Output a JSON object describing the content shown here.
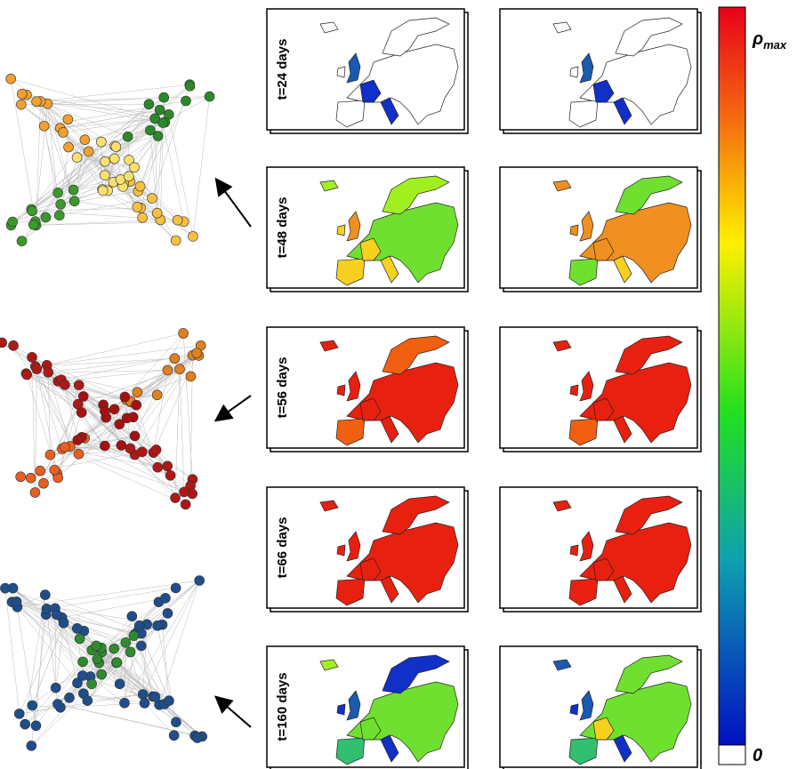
{
  "panels": [
    {
      "label": "t=24 days"
    },
    {
      "label": "t=48 days"
    },
    {
      "label": "t=56 days"
    },
    {
      "label": "t=66 days"
    },
    {
      "label": "t=160 days"
    }
  ],
  "colorbar": {
    "max_symbol": "ρ",
    "max_subscript": "max",
    "min_label": "0"
  }
}
